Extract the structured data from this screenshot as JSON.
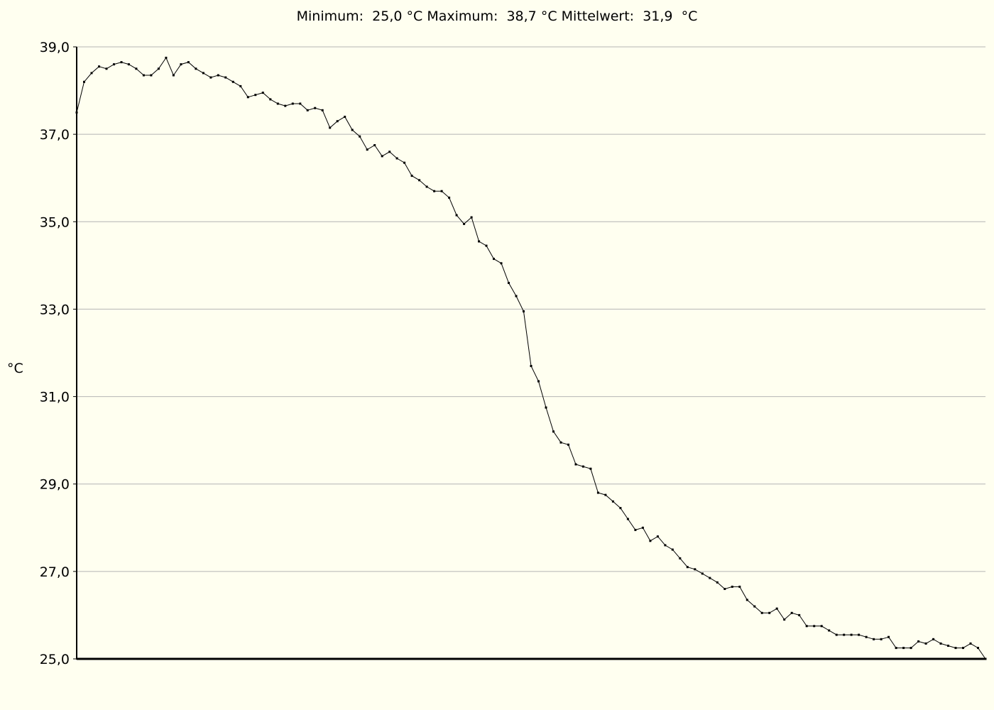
{
  "header": {
    "min_label": "Minimum:",
    "min_value": "25,0",
    "max_label": "Maximum:",
    "max_value": "38,7",
    "mean_label": "Mittelwert:",
    "mean_value": "31,9",
    "unit": "°C"
  },
  "colors": {
    "background": "#fffff0",
    "grid": "#b4b4b4",
    "axis": "#000000",
    "line": "#000000"
  },
  "chart_data": {
    "type": "line",
    "title": "",
    "xlabel": "",
    "ylabel": "°C",
    "ylim": [
      25,
      39
    ],
    "yticks": [
      25,
      27,
      29,
      31,
      33,
      35,
      37,
      39
    ],
    "ytick_labels": [
      "25,0",
      "27,0",
      "29,0",
      "31,0",
      "33,0",
      "35,0",
      "37,0",
      "39,0"
    ],
    "grid": true,
    "markers": true,
    "series": [
      {
        "values": [
          37.5,
          38.2,
          38.4,
          38.55,
          38.5,
          38.6,
          38.65,
          38.6,
          38.5,
          38.35,
          38.35,
          38.5,
          38.75,
          38.35,
          38.6,
          38.65,
          38.5,
          38.4,
          38.3,
          38.35,
          38.3,
          38.2,
          38.1,
          37.85,
          37.9,
          37.95,
          37.8,
          37.7,
          37.65,
          37.7,
          37.7,
          37.55,
          37.6,
          37.55,
          37.15,
          37.3,
          37.4,
          37.1,
          36.95,
          36.65,
          36.75,
          36.5,
          36.6,
          36.45,
          36.35,
          36.05,
          35.95,
          35.8,
          35.7,
          35.7,
          35.55,
          35.15,
          34.95,
          35.1,
          34.55,
          34.45,
          34.15,
          34.05,
          33.6,
          33.3,
          32.95,
          31.7,
          31.35,
          30.75,
          30.2,
          29.95,
          29.9,
          29.45,
          29.4,
          29.35,
          28.8,
          28.75,
          28.6,
          28.45,
          28.2,
          27.95,
          28.0,
          27.7,
          27.8,
          27.6,
          27.5,
          27.3,
          27.1,
          27.05,
          26.95,
          26.85,
          26.75,
          26.6,
          26.65,
          26.65,
          26.35,
          26.2,
          26.05,
          26.05,
          26.15,
          25.9,
          26.05,
          26.0,
          25.75,
          25.75,
          25.75,
          25.65,
          25.55,
          25.55,
          25.55,
          25.55,
          25.5,
          25.45,
          25.45,
          25.5,
          25.25,
          25.25,
          25.25,
          25.4,
          25.35,
          25.45,
          25.35,
          25.3,
          25.25,
          25.25,
          25.35,
          25.25,
          25.0
        ]
      }
    ]
  }
}
